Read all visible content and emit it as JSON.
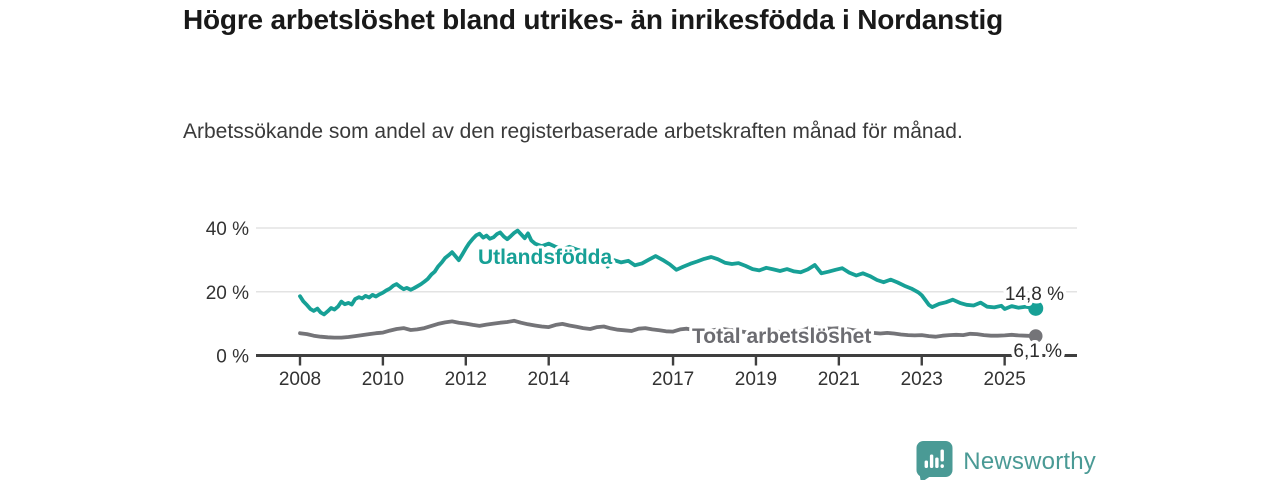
{
  "title": "Högre arbetslöshet bland utrikes- än inrikesfödda i Nordanstig",
  "subtitle": "Arbetssökande som andel av den registerbaserade arbetskraften månad för månad.",
  "branding": {
    "name": "Newsworthy",
    "icon": "newsworthy-speech-bubble-bar-chart-icon",
    "color": "#4a9a95"
  },
  "colors": {
    "foreign_born_line": "#17a096",
    "total_line": "#747478",
    "total_label": "#6c6c71",
    "axis": "#3f3f3f",
    "grid": "#e3e3e3",
    "value_label": "#2d2d2d",
    "tick_text": "#333333"
  },
  "chart_data": {
    "type": "line",
    "title": "Högre arbetslöshet bland utrikes- än inrikesfödda i Nordanstig",
    "subtitle": "Arbetssökande som andel av den registerbaserade arbetskraften månad för månad.",
    "legend": "inline-labels",
    "grid": "horizontal",
    "x_axis": {
      "tick_values": [
        2008,
        2010,
        2012,
        2014,
        2017,
        2019,
        2021,
        2023,
        2025
      ],
      "tick_labels": [
        "2008",
        "2010",
        "2012",
        "2014",
        "2017",
        "2019",
        "2021",
        "2023",
        "2025"
      ],
      "range": [
        2006.9,
        2026.7
      ]
    },
    "y_axis": {
      "unit": "%",
      "tick_values": [
        0,
        20,
        40
      ],
      "tick_labels": [
        "0 %",
        "20 %",
        "40 %"
      ],
      "range": [
        0,
        47
      ]
    },
    "series": [
      {
        "name": "Utlandsfödda",
        "color": "#17a096",
        "end_value": 14.8,
        "end_label": "14,8 %",
        "points": [
          [
            2008.0,
            18.6
          ],
          [
            2008.08,
            17.0
          ],
          [
            2008.17,
            15.8
          ],
          [
            2008.25,
            14.6
          ],
          [
            2008.33,
            14.0
          ],
          [
            2008.42,
            14.7
          ],
          [
            2008.5,
            13.5
          ],
          [
            2008.58,
            12.9
          ],
          [
            2008.67,
            13.9
          ],
          [
            2008.75,
            14.9
          ],
          [
            2008.83,
            14.4
          ],
          [
            2008.92,
            15.4
          ],
          [
            2009.0,
            16.9
          ],
          [
            2009.08,
            16.1
          ],
          [
            2009.17,
            16.5
          ],
          [
            2009.25,
            16.0
          ],
          [
            2009.33,
            17.7
          ],
          [
            2009.42,
            18.3
          ],
          [
            2009.5,
            17.9
          ],
          [
            2009.58,
            18.7
          ],
          [
            2009.67,
            18.2
          ],
          [
            2009.75,
            19.0
          ],
          [
            2009.83,
            18.5
          ],
          [
            2009.92,
            19.2
          ],
          [
            2010.0,
            19.7
          ],
          [
            2010.08,
            20.4
          ],
          [
            2010.17,
            21.0
          ],
          [
            2010.25,
            21.9
          ],
          [
            2010.33,
            22.4
          ],
          [
            2010.42,
            21.5
          ],
          [
            2010.5,
            20.8
          ],
          [
            2010.58,
            21.2
          ],
          [
            2010.67,
            20.6
          ],
          [
            2010.75,
            21.1
          ],
          [
            2010.83,
            21.7
          ],
          [
            2010.92,
            22.4
          ],
          [
            2011.0,
            23.2
          ],
          [
            2011.08,
            24.0
          ],
          [
            2011.17,
            25.4
          ],
          [
            2011.25,
            26.3
          ],
          [
            2011.33,
            27.9
          ],
          [
            2011.42,
            29.2
          ],
          [
            2011.5,
            30.6
          ],
          [
            2011.58,
            31.4
          ],
          [
            2011.67,
            32.4
          ],
          [
            2011.75,
            31.2
          ],
          [
            2011.83,
            29.9
          ],
          [
            2011.92,
            31.8
          ],
          [
            2012.0,
            33.6
          ],
          [
            2012.08,
            35.2
          ],
          [
            2012.17,
            36.6
          ],
          [
            2012.25,
            37.7
          ],
          [
            2012.33,
            38.2
          ],
          [
            2012.42,
            37.0
          ],
          [
            2012.5,
            37.6
          ],
          [
            2012.58,
            36.6
          ],
          [
            2012.67,
            37.1
          ],
          [
            2012.75,
            38.1
          ],
          [
            2012.83,
            38.6
          ],
          [
            2012.92,
            37.3
          ],
          [
            2013.0,
            36.5
          ],
          [
            2013.08,
            37.4
          ],
          [
            2013.17,
            38.5
          ],
          [
            2013.25,
            39.2
          ],
          [
            2013.33,
            38.1
          ],
          [
            2013.42,
            36.8
          ],
          [
            2013.5,
            38.3
          ],
          [
            2013.58,
            36.1
          ],
          [
            2013.67,
            35.1
          ],
          [
            2013.83,
            34.3
          ],
          [
            2014.0,
            35.1
          ],
          [
            2014.17,
            34.1
          ],
          [
            2014.33,
            33.3
          ],
          [
            2014.5,
            34.1
          ],
          [
            2014.67,
            33.3
          ],
          [
            2014.83,
            32.7
          ],
          [
            2015.0,
            32.1
          ],
          [
            2015.17,
            32.7
          ],
          [
            2015.33,
            29.6
          ],
          [
            2015.42,
            27.9
          ],
          [
            2015.58,
            29.9
          ],
          [
            2015.75,
            29.2
          ],
          [
            2015.92,
            29.7
          ],
          [
            2016.08,
            28.3
          ],
          [
            2016.25,
            28.9
          ],
          [
            2016.42,
            30.1
          ],
          [
            2016.58,
            31.2
          ],
          [
            2016.75,
            30.0
          ],
          [
            2016.92,
            28.6
          ],
          [
            2017.08,
            26.9
          ],
          [
            2017.25,
            27.9
          ],
          [
            2017.42,
            28.8
          ],
          [
            2017.58,
            29.5
          ],
          [
            2017.75,
            30.3
          ],
          [
            2017.92,
            30.9
          ],
          [
            2018.08,
            30.2
          ],
          [
            2018.25,
            29.1
          ],
          [
            2018.42,
            28.7
          ],
          [
            2018.58,
            29.0
          ],
          [
            2018.75,
            28.1
          ],
          [
            2018.92,
            27.1
          ],
          [
            2019.08,
            26.7
          ],
          [
            2019.25,
            27.5
          ],
          [
            2019.42,
            27.0
          ],
          [
            2019.58,
            26.5
          ],
          [
            2019.75,
            27.1
          ],
          [
            2019.92,
            26.4
          ],
          [
            2020.08,
            26.1
          ],
          [
            2020.25,
            27.0
          ],
          [
            2020.42,
            28.4
          ],
          [
            2020.58,
            25.8
          ],
          [
            2020.75,
            26.3
          ],
          [
            2020.92,
            26.9
          ],
          [
            2021.08,
            27.4
          ],
          [
            2021.25,
            26.0
          ],
          [
            2021.42,
            25.1
          ],
          [
            2021.58,
            25.8
          ],
          [
            2021.75,
            24.9
          ],
          [
            2021.92,
            23.7
          ],
          [
            2022.08,
            23.0
          ],
          [
            2022.25,
            23.8
          ],
          [
            2022.42,
            22.9
          ],
          [
            2022.58,
            21.9
          ],
          [
            2022.75,
            21.0
          ],
          [
            2022.92,
            19.8
          ],
          [
            2023.0,
            18.9
          ],
          [
            2023.08,
            17.5
          ],
          [
            2023.17,
            15.9
          ],
          [
            2023.25,
            15.2
          ],
          [
            2023.42,
            16.2
          ],
          [
            2023.58,
            16.7
          ],
          [
            2023.75,
            17.5
          ],
          [
            2023.92,
            16.5
          ],
          [
            2024.08,
            15.9
          ],
          [
            2024.25,
            15.7
          ],
          [
            2024.42,
            16.6
          ],
          [
            2024.58,
            15.3
          ],
          [
            2024.75,
            15.1
          ],
          [
            2024.92,
            15.6
          ],
          [
            2025.0,
            14.6
          ],
          [
            2025.17,
            15.5
          ],
          [
            2025.33,
            15.0
          ],
          [
            2025.5,
            15.3
          ],
          [
            2025.75,
            14.8
          ]
        ]
      },
      {
        "name": "Total arbetslöshet",
        "color": "#747478",
        "end_value": 6.1,
        "end_label": "6,1 %",
        "points": [
          [
            2008.0,
            7.0
          ],
          [
            2008.17,
            6.7
          ],
          [
            2008.33,
            6.2
          ],
          [
            2008.5,
            5.9
          ],
          [
            2008.67,
            5.7
          ],
          [
            2008.83,
            5.6
          ],
          [
            2009.0,
            5.6
          ],
          [
            2009.17,
            5.8
          ],
          [
            2009.33,
            6.1
          ],
          [
            2009.5,
            6.4
          ],
          [
            2009.67,
            6.7
          ],
          [
            2009.83,
            7.0
          ],
          [
            2010.0,
            7.2
          ],
          [
            2010.17,
            7.8
          ],
          [
            2010.33,
            8.3
          ],
          [
            2010.5,
            8.6
          ],
          [
            2010.67,
            8.0
          ],
          [
            2010.83,
            8.2
          ],
          [
            2011.0,
            8.6
          ],
          [
            2011.17,
            9.3
          ],
          [
            2011.33,
            9.9
          ],
          [
            2011.5,
            10.4
          ],
          [
            2011.67,
            10.7
          ],
          [
            2011.83,
            10.3
          ],
          [
            2012.0,
            10.0
          ],
          [
            2012.17,
            9.6
          ],
          [
            2012.33,
            9.3
          ],
          [
            2012.5,
            9.7
          ],
          [
            2012.67,
            10.0
          ],
          [
            2012.83,
            10.3
          ],
          [
            2013.0,
            10.5
          ],
          [
            2013.17,
            10.9
          ],
          [
            2013.33,
            10.3
          ],
          [
            2013.5,
            9.8
          ],
          [
            2013.67,
            9.4
          ],
          [
            2013.83,
            9.1
          ],
          [
            2014.0,
            8.9
          ],
          [
            2014.17,
            9.6
          ],
          [
            2014.33,
            9.9
          ],
          [
            2014.5,
            9.4
          ],
          [
            2014.67,
            9.0
          ],
          [
            2014.83,
            8.6
          ],
          [
            2015.0,
            8.3
          ],
          [
            2015.17,
            8.9
          ],
          [
            2015.33,
            9.1
          ],
          [
            2015.5,
            8.5
          ],
          [
            2015.67,
            8.1
          ],
          [
            2015.83,
            7.9
          ],
          [
            2016.0,
            7.7
          ],
          [
            2016.17,
            8.4
          ],
          [
            2016.33,
            8.6
          ],
          [
            2016.5,
            8.2
          ],
          [
            2016.67,
            7.9
          ],
          [
            2016.83,
            7.6
          ],
          [
            2017.0,
            7.5
          ],
          [
            2017.17,
            8.2
          ],
          [
            2017.33,
            8.4
          ],
          [
            2017.5,
            8.0
          ],
          [
            2017.67,
            7.8
          ],
          [
            2017.83,
            7.7
          ],
          [
            2018.0,
            8.0
          ],
          [
            2018.17,
            8.4
          ],
          [
            2018.33,
            8.1
          ],
          [
            2018.5,
            7.8
          ],
          [
            2018.67,
            7.5
          ],
          [
            2018.83,
            7.2
          ],
          [
            2019.0,
            7.0
          ],
          [
            2019.17,
            7.7
          ],
          [
            2019.33,
            7.9
          ],
          [
            2019.5,
            7.5
          ],
          [
            2019.67,
            7.3
          ],
          [
            2019.83,
            7.3
          ],
          [
            2020.0,
            7.4
          ],
          [
            2020.17,
            8.1
          ],
          [
            2020.33,
            8.9
          ],
          [
            2020.5,
            8.7
          ],
          [
            2020.67,
            8.5
          ],
          [
            2020.83,
            8.4
          ],
          [
            2021.0,
            8.6
          ],
          [
            2021.17,
            8.3
          ],
          [
            2021.33,
            8.0
          ],
          [
            2021.5,
            7.7
          ],
          [
            2021.67,
            7.4
          ],
          [
            2021.83,
            7.1
          ],
          [
            2022.0,
            6.9
          ],
          [
            2022.17,
            7.1
          ],
          [
            2022.33,
            6.9
          ],
          [
            2022.5,
            6.6
          ],
          [
            2022.67,
            6.4
          ],
          [
            2022.83,
            6.3
          ],
          [
            2023.0,
            6.4
          ],
          [
            2023.17,
            6.1
          ],
          [
            2023.33,
            5.9
          ],
          [
            2023.5,
            6.2
          ],
          [
            2023.67,
            6.4
          ],
          [
            2023.83,
            6.5
          ],
          [
            2024.0,
            6.4
          ],
          [
            2024.17,
            6.8
          ],
          [
            2024.33,
            6.7
          ],
          [
            2024.5,
            6.4
          ],
          [
            2024.67,
            6.2
          ],
          [
            2024.83,
            6.2
          ],
          [
            2025.0,
            6.3
          ],
          [
            2025.17,
            6.5
          ],
          [
            2025.33,
            6.3
          ],
          [
            2025.5,
            6.2
          ],
          [
            2025.75,
            6.1
          ]
        ]
      }
    ]
  }
}
